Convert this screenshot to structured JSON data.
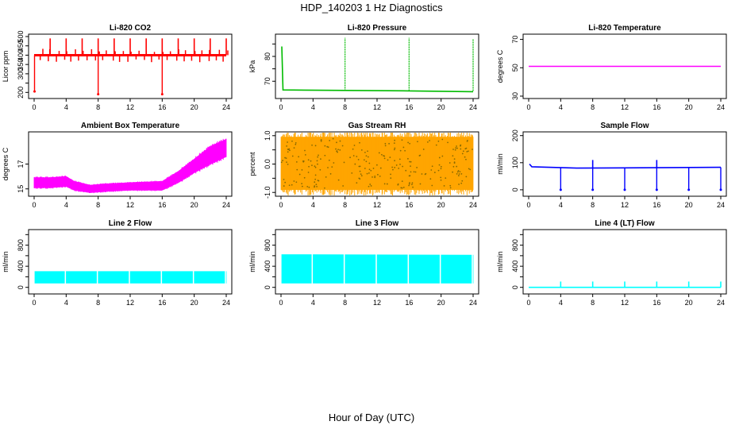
{
  "figure": {
    "title": "HDP_140203  1 Hz Diagnostics",
    "xlabel": "Hour of Day (UTC)"
  },
  "chart_data": [
    {
      "type": "line",
      "title": "Li-820 CO2",
      "ylabel": "Licor ppm",
      "color": "#ff0000",
      "xlim": [
        0,
        24
      ],
      "ylim": [
        180,
        500
      ],
      "xticks": [
        0,
        4,
        8,
        12,
        16,
        20,
        24
      ],
      "yticks": [
        200,
        250,
        300,
        350,
        400,
        450,
        500
      ],
      "ytick_labels": [
        "200",
        "",
        "300",
        "350",
        "400",
        "450",
        "500"
      ],
      "base_level": 400,
      "spikes_up": [
        {
          "x": 2.0,
          "y": 490
        },
        {
          "x": 4.0,
          "y": 490
        },
        {
          "x": 6.0,
          "y": 490
        },
        {
          "x": 8.0,
          "y": 490
        },
        {
          "x": 10.0,
          "y": 490
        },
        {
          "x": 12.0,
          "y": 490
        },
        {
          "x": 14.0,
          "y": 490
        },
        {
          "x": 16.0,
          "y": 490
        },
        {
          "x": 18.0,
          "y": 490
        },
        {
          "x": 20.0,
          "y": 490
        },
        {
          "x": 22.0,
          "y": 490
        },
        {
          "x": 24.0,
          "y": 490
        }
      ],
      "spikes_down": [
        {
          "x": 0.05,
          "y": 205
        },
        {
          "x": 8.0,
          "y": 190
        },
        {
          "x": 16.0,
          "y": 190
        }
      ]
    },
    {
      "type": "line",
      "title": "Li-820 Pressure",
      "ylabel": "kPa",
      "color": "#00bb00",
      "xlim": [
        0,
        24
      ],
      "ylim": [
        64,
        88
      ],
      "xticks": [
        0,
        4,
        8,
        12,
        16,
        20,
        24
      ],
      "yticks": [
        70,
        75,
        80,
        85
      ],
      "ytick_labels": [
        "70",
        "",
        "80",
        ""
      ],
      "points": [
        {
          "x": 0.1,
          "y": 84
        },
        {
          "x": 0.25,
          "y": 66.5
        },
        {
          "x": 8,
          "y": 66.3
        },
        {
          "x": 16,
          "y": 66.1
        },
        {
          "x": 24,
          "y": 65.8
        }
      ],
      "spikes_up": [
        {
          "x": 8.0,
          "y": 87.5
        },
        {
          "x": 16.0,
          "y": 87.5
        },
        {
          "x": 24.0,
          "y": 87.0
        }
      ]
    },
    {
      "type": "line",
      "title": "Li-820 Temperature",
      "ylabel": "degrees C",
      "color": "#ff00ff",
      "xlim": [
        0,
        24
      ],
      "ylim": [
        30,
        72
      ],
      "xticks": [
        0,
        4,
        8,
        12,
        16,
        20,
        24
      ],
      "yticks": [
        30,
        50,
        70
      ],
      "ytick_labels": [
        "30",
        "50",
        "70"
      ],
      "points": [
        {
          "x": 0,
          "y": 51
        },
        {
          "x": 24,
          "y": 51
        }
      ]
    },
    {
      "type": "area",
      "title": "Ambient Box Temperature",
      "ylabel": "degrees C",
      "color": "#ff00ff",
      "xlim": [
        0,
        24
      ],
      "ylim": [
        14.6,
        19.4
      ],
      "xticks": [
        0,
        4,
        8,
        12,
        16,
        20,
        24
      ],
      "yticks": [
        15,
        17
      ],
      "ytick_labels": [
        "15",
        "17"
      ],
      "band": [
        {
          "x": 0,
          "low": 15.1,
          "high": 15.9
        },
        {
          "x": 2,
          "low": 15.1,
          "high": 15.9
        },
        {
          "x": 4,
          "low": 15.2,
          "high": 16.0
        },
        {
          "x": 5,
          "low": 14.9,
          "high": 15.6
        },
        {
          "x": 7,
          "low": 14.7,
          "high": 15.3
        },
        {
          "x": 9,
          "low": 14.8,
          "high": 15.4
        },
        {
          "x": 12,
          "low": 14.9,
          "high": 15.5
        },
        {
          "x": 16,
          "low": 14.9,
          "high": 15.6
        },
        {
          "x": 18,
          "low": 15.5,
          "high": 16.4
        },
        {
          "x": 20,
          "low": 16.3,
          "high": 17.4
        },
        {
          "x": 22,
          "low": 17.0,
          "high": 18.4
        },
        {
          "x": 24,
          "low": 17.6,
          "high": 19.0
        }
      ]
    },
    {
      "type": "area",
      "title": "Gas Stream RH",
      "ylabel": "percent",
      "color": "#ffa500",
      "xlim": [
        0,
        24
      ],
      "ylim": [
        -1.05,
        1.05
      ],
      "xticks": [
        0,
        4,
        8,
        12,
        16,
        20,
        24
      ],
      "yticks": [
        -1.0,
        -0.5,
        0.0,
        0.5,
        1.0
      ],
      "ytick_labels": [
        "-1.0",
        "",
        "0.0",
        "",
        "1.0"
      ],
      "band": [
        {
          "x": 0,
          "low": -0.9,
          "high": 0.95
        },
        {
          "x": 24,
          "low": -0.9,
          "high": 0.95
        }
      ]
    },
    {
      "type": "line",
      "title": "Sample Flow",
      "ylabel": "ml/min",
      "color": "#0000ff",
      "xlim": [
        0,
        24
      ],
      "ylim": [
        -15,
        205
      ],
      "xticks": [
        0,
        4,
        8,
        12,
        16,
        20,
        24
      ],
      "yticks": [
        0,
        100,
        200
      ],
      "ytick_labels": [
        "0",
        "100",
        "200"
      ],
      "points": [
        {
          "x": 0.1,
          "y": 95
        },
        {
          "x": 0.4,
          "y": 85
        },
        {
          "x": 6,
          "y": 80
        },
        {
          "x": 12,
          "y": 81
        },
        {
          "x": 18,
          "y": 82
        },
        {
          "x": 24,
          "y": 83
        }
      ],
      "spikes_down": [
        {
          "x": 4,
          "y": 0
        },
        {
          "x": 8,
          "y": 0
        },
        {
          "x": 12,
          "y": 0
        },
        {
          "x": 16,
          "y": 0
        },
        {
          "x": 20,
          "y": 0
        },
        {
          "x": 24,
          "y": 0
        }
      ],
      "spikes_up": [
        {
          "x": 8,
          "y": 110
        },
        {
          "x": 16,
          "y": 110
        }
      ]
    },
    {
      "type": "area",
      "title": "Line 2 Flow",
      "ylabel": "ml/min",
      "color": "#00ffff",
      "xlim": [
        0,
        24
      ],
      "ylim": [
        -80,
        1050
      ],
      "xticks": [
        0,
        4,
        8,
        12,
        16,
        20,
        24
      ],
      "yticks": [
        0,
        200,
        400,
        600,
        800,
        1000
      ],
      "ytick_labels": [
        "0",
        "",
        "400",
        "",
        "800",
        ""
      ],
      "band": [
        {
          "x": 0.1,
          "low": 80,
          "high": 300
        },
        {
          "x": 24,
          "low": 80,
          "high": 300
        }
      ],
      "gaps": [
        4,
        8,
        12,
        16,
        20,
        24
      ]
    },
    {
      "type": "area",
      "title": "Line 3 Flow",
      "ylabel": "ml/min",
      "color": "#00ffff",
      "xlim": [
        0,
        24
      ],
      "ylim": [
        -80,
        1050
      ],
      "xticks": [
        0,
        4,
        8,
        12,
        16,
        20,
        24
      ],
      "yticks": [
        0,
        200,
        400,
        600,
        800,
        1000
      ],
      "ytick_labels": [
        "0",
        "",
        "400",
        "",
        "800",
        ""
      ],
      "band": [
        {
          "x": 0.1,
          "low": 80,
          "high": 620
        },
        {
          "x": 24,
          "low": 80,
          "high": 610
        }
      ],
      "gaps": [
        4,
        8,
        12,
        16,
        20,
        24
      ]
    },
    {
      "type": "line",
      "title": "Line 4 (LT) Flow",
      "ylabel": "ml/min",
      "color": "#00ffff",
      "xlim": [
        0,
        24
      ],
      "ylim": [
        -80,
        1050
      ],
      "xticks": [
        0,
        4,
        8,
        12,
        16,
        20,
        24
      ],
      "yticks": [
        0,
        200,
        400,
        600,
        800,
        1000
      ],
      "ytick_labels": [
        "0",
        "",
        "400",
        "",
        "800",
        ""
      ],
      "points": [
        {
          "x": 0,
          "y": 0
        },
        {
          "x": 24,
          "y": 0
        }
      ],
      "spikes_up": [
        {
          "x": 4,
          "y": 110
        },
        {
          "x": 8,
          "y": 110
        },
        {
          "x": 12,
          "y": 110
        },
        {
          "x": 16,
          "y": 110
        },
        {
          "x": 20,
          "y": 110
        },
        {
          "x": 24,
          "y": 110
        }
      ]
    }
  ]
}
